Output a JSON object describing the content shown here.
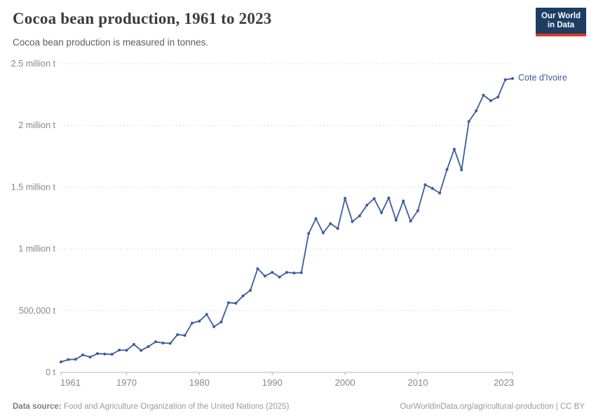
{
  "header": {
    "title": "Cocoa bean production, 1961 to 2023",
    "subtitle": "Cocoa bean production is measured in tonnes.",
    "logo": {
      "line1": "Our World",
      "line2": "in Data"
    }
  },
  "colors": {
    "line": "#3e5c9c",
    "entity_label": "#3e5c9c",
    "logo_bg": "#1d3d63",
    "logo_accent": "#d93a2d",
    "grid": "#dedede",
    "axis": "#b3b3b3",
    "tick_label": "#878787"
  },
  "chart_data": {
    "type": "line",
    "title": "Cocoa bean production, 1961 to 2023",
    "ylabel": "tonnes",
    "xlabel": "",
    "grid": "horizontal-dashed",
    "legend_position": "end-of-line-label",
    "xlim": [
      1961,
      2023
    ],
    "ylim": [
      0,
      2500000
    ],
    "x_ticks": [
      {
        "value": 1961,
        "label": "1961"
      },
      {
        "value": 1970,
        "label": "1970"
      },
      {
        "value": 1980,
        "label": "1980"
      },
      {
        "value": 1990,
        "label": "1990"
      },
      {
        "value": 2000,
        "label": "2000"
      },
      {
        "value": 2010,
        "label": "2010"
      },
      {
        "value": 2023,
        "label": "2023"
      }
    ],
    "y_ticks": [
      {
        "value": 0,
        "label": "0 t"
      },
      {
        "value": 500000,
        "label": "500,000 t"
      },
      {
        "value": 1000000,
        "label": "1 million t"
      },
      {
        "value": 1500000,
        "label": "1.5 million t"
      },
      {
        "value": 2000000,
        "label": "2 million t"
      },
      {
        "value": 2500000,
        "label": "2.5 million t"
      }
    ],
    "series": [
      {
        "name": "Cote d'Ivoire",
        "x": [
          1961,
          1962,
          1963,
          1964,
          1965,
          1966,
          1967,
          1968,
          1969,
          1970,
          1971,
          1972,
          1973,
          1974,
          1975,
          1976,
          1977,
          1978,
          1979,
          1980,
          1981,
          1982,
          1983,
          1984,
          1985,
          1986,
          1987,
          1988,
          1989,
          1990,
          1991,
          1992,
          1993,
          1994,
          1995,
          1996,
          1997,
          1998,
          1999,
          2000,
          2001,
          2002,
          2003,
          2004,
          2005,
          2006,
          2007,
          2008,
          2009,
          2010,
          2011,
          2012,
          2013,
          2014,
          2015,
          2016,
          2017,
          2018,
          2019,
          2020,
          2021,
          2022,
          2023
        ],
        "values": [
          85000,
          104000,
          106000,
          142000,
          124000,
          152000,
          149000,
          147000,
          181000,
          179000,
          227000,
          178000,
          209000,
          248000,
          238000,
          235000,
          306000,
          300000,
          400000,
          415000,
          470000,
          370000,
          408000,
          565000,
          560000,
          620000,
          665000,
          840000,
          780000,
          810000,
          772000,
          810000,
          805000,
          808000,
          1125000,
          1245000,
          1130000,
          1205000,
          1165000,
          1410000,
          1222000,
          1268000,
          1355000,
          1407000,
          1293000,
          1413000,
          1233000,
          1388000,
          1225000,
          1310000,
          1520000,
          1490000,
          1452000,
          1643000,
          1808000,
          1640000,
          2032000,
          2118000,
          2245000,
          2200000,
          2230000,
          2370000,
          2380000
        ]
      }
    ]
  },
  "footer": {
    "source_label": "Data source:",
    "source_text": "Food and Agriculture Organization of the United Nations (2025)",
    "link_text": "OurWorldinData.org/agricultural-production",
    "separator": " | ",
    "license": "CC BY"
  }
}
